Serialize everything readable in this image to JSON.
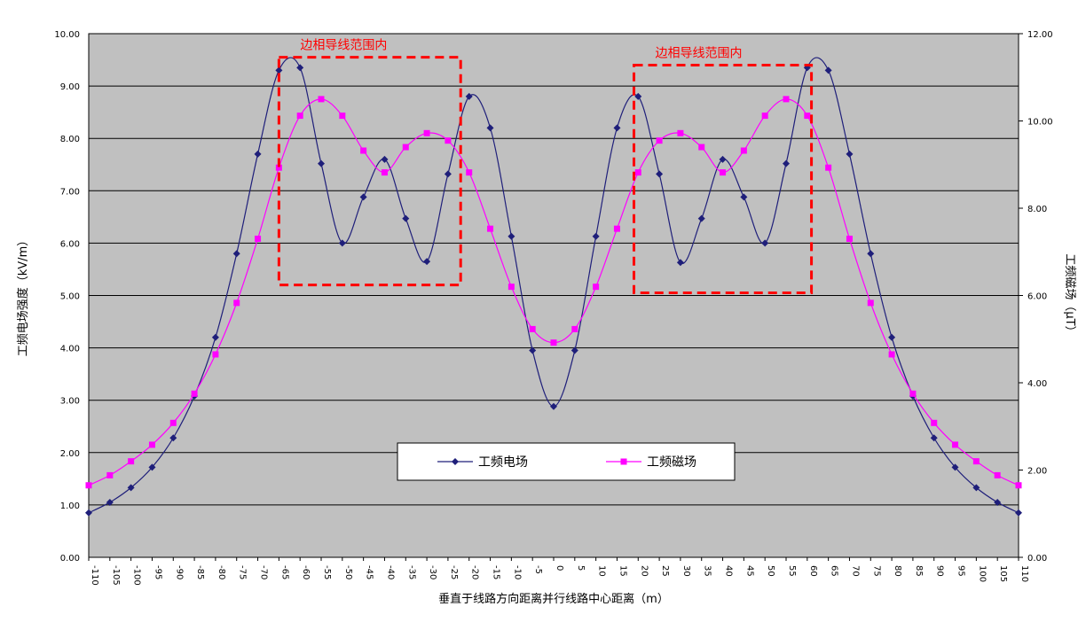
{
  "chart_data": {
    "type": "line",
    "xlabel": "垂直于线路方向距离并行线路中心距离（m）",
    "ylabel_left": "工频电场强度（kV/m）",
    "ylabel_right": "工频磁场（μT）",
    "xlim": [
      -110,
      110
    ],
    "ylim_left": [
      0,
      10
    ],
    "ylim_right": [
      0,
      12
    ],
    "x_tick_labels": [
      "-110",
      "-105",
      "-100",
      "-95",
      "-90",
      "-85",
      "-80",
      "-75",
      "-70",
      "-65",
      "-60",
      "-55",
      "-50",
      "-45",
      "-40",
      "-35",
      "-30",
      "-25",
      "-20",
      "-15",
      "-10",
      "-5",
      "0",
      "5",
      "10",
      "15",
      "20",
      "25",
      "30",
      "35",
      "40",
      "45",
      "50",
      "55",
      "60",
      "65",
      "70",
      "75",
      "80",
      "85",
      "90",
      "95",
      "100",
      "105",
      "110"
    ],
    "y_left_tick_labels": [
      "0.00",
      "1.00",
      "2.00",
      "3.00",
      "4.00",
      "5.00",
      "6.00",
      "7.00",
      "8.00",
      "9.00",
      "10.00"
    ],
    "y_right_tick_labels": [
      "0.00",
      "2.00",
      "4.00",
      "6.00",
      "8.00",
      "10.00",
      "12.00"
    ],
    "grid": true,
    "legend_position": "bottom-center",
    "background_color": "#c0c0c0",
    "series": [
      {
        "name": "工频电场",
        "axis": "left",
        "color": "#1f1f7a",
        "marker": "diamond",
        "x": [
          -110,
          -105,
          -100,
          -95,
          -90,
          -85,
          -80,
          -75,
          -70,
          -65,
          -60,
          -55,
          -50,
          -45,
          -40,
          -35,
          -30,
          -25,
          -20,
          -15,
          -10,
          -5,
          0,
          5,
          10,
          15,
          20,
          25,
          30,
          35,
          40,
          45,
          50,
          55,
          60,
          65,
          70,
          75,
          80,
          85,
          90,
          95,
          100,
          105,
          110
        ],
        "values": [
          0.85,
          1.05,
          1.33,
          1.72,
          2.28,
          3.08,
          4.2,
          5.8,
          7.7,
          9.3,
          9.35,
          7.52,
          6.0,
          6.88,
          7.6,
          6.47,
          5.65,
          7.32,
          8.8,
          8.2,
          6.13,
          3.95,
          2.88,
          3.95,
          6.13,
          8.2,
          8.8,
          7.32,
          5.63,
          6.47,
          7.6,
          6.88,
          6.0,
          7.52,
          9.35,
          9.3,
          7.7,
          5.8,
          4.2,
          3.08,
          2.28,
          1.72,
          1.33,
          1.05,
          0.85
        ]
      },
      {
        "name": "工频磁场",
        "axis": "right",
        "color": "#ff00ff",
        "marker": "square",
        "x": [
          -110,
          -105,
          -100,
          -95,
          -90,
          -85,
          -80,
          -75,
          -70,
          -65,
          -60,
          -55,
          -50,
          -45,
          -40,
          -35,
          -30,
          -25,
          -20,
          -15,
          -10,
          -5,
          0,
          5,
          10,
          15,
          20,
          25,
          30,
          35,
          40,
          45,
          50,
          55,
          60,
          65,
          70,
          75,
          80,
          85,
          90,
          95,
          100,
          105,
          110
        ],
        "values": [
          1.65,
          1.88,
          2.2,
          2.58,
          3.08,
          3.75,
          4.65,
          5.83,
          7.3,
          8.93,
          10.12,
          10.5,
          10.12,
          9.32,
          8.82,
          9.4,
          9.72,
          9.55,
          8.82,
          7.53,
          6.2,
          5.23,
          4.92,
          5.23,
          6.2,
          7.53,
          8.82,
          9.55,
          9.72,
          9.4,
          8.82,
          9.32,
          10.12,
          10.5,
          10.12,
          8.93,
          7.3,
          5.83,
          4.65,
          3.75,
          3.08,
          2.58,
          2.2,
          1.88,
          1.65
        ]
      }
    ],
    "annotations": [
      {
        "text": "边相导线范围内",
        "color": "#ff0000",
        "x_range": [
          -65,
          -22
        ],
        "y_range": [
          5.2,
          9.55
        ]
      },
      {
        "text": "边相导线范围内",
        "color": "#ff0000",
        "x_range": [
          19,
          61
        ],
        "y_range": [
          5.05,
          9.4
        ]
      }
    ]
  }
}
